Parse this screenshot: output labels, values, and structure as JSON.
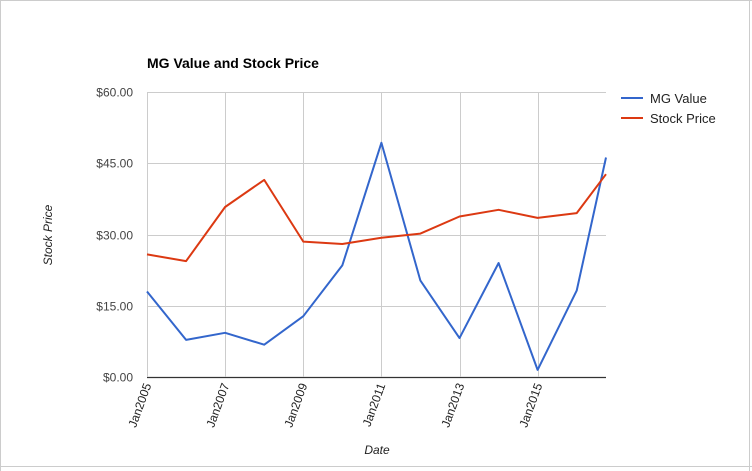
{
  "chart_data": {
    "type": "line",
    "title": "MG Value and Stock Price",
    "xlabel": "Date",
    "ylabel": "Stock Price",
    "x": [
      2005,
      2006,
      2007,
      2008,
      2009,
      2010,
      2011,
      2012,
      2013,
      2014,
      2015,
      2016,
      2016.75
    ],
    "x_ticks": [
      {
        "value": 2005,
        "label": "Jan2005"
      },
      {
        "value": 2007,
        "label": "Jan2007"
      },
      {
        "value": 2009,
        "label": "Jan2009"
      },
      {
        "value": 2011,
        "label": "Jan2011"
      },
      {
        "value": 2013,
        "label": "Jan2013"
      },
      {
        "value": 2015,
        "label": "Jan2015"
      }
    ],
    "xlim": [
      2005,
      2016.75
    ],
    "ylim": [
      0,
      60
    ],
    "y_ticks": [
      {
        "value": 0,
        "label": "$0.00"
      },
      {
        "value": 15,
        "label": "$15.00"
      },
      {
        "value": 30,
        "label": "$30.00"
      },
      {
        "value": 45,
        "label": "$45.00"
      },
      {
        "value": 60,
        "label": "$60.00"
      }
    ],
    "grid": true,
    "legend_position": "right",
    "series": [
      {
        "name": "MG Value",
        "color": "#3366cc",
        "values": [
          18.0,
          7.8,
          9.3,
          6.8,
          12.8,
          23.5,
          49.3,
          20.3,
          8.2,
          24.0,
          1.5,
          18.2,
          46.2
        ]
      },
      {
        "name": "Stock Price",
        "color": "#dc3912",
        "values": [
          25.8,
          24.4,
          35.8,
          41.5,
          28.5,
          28.0,
          29.3,
          30.2,
          33.8,
          35.2,
          33.5,
          34.5,
          42.7
        ]
      }
    ]
  }
}
